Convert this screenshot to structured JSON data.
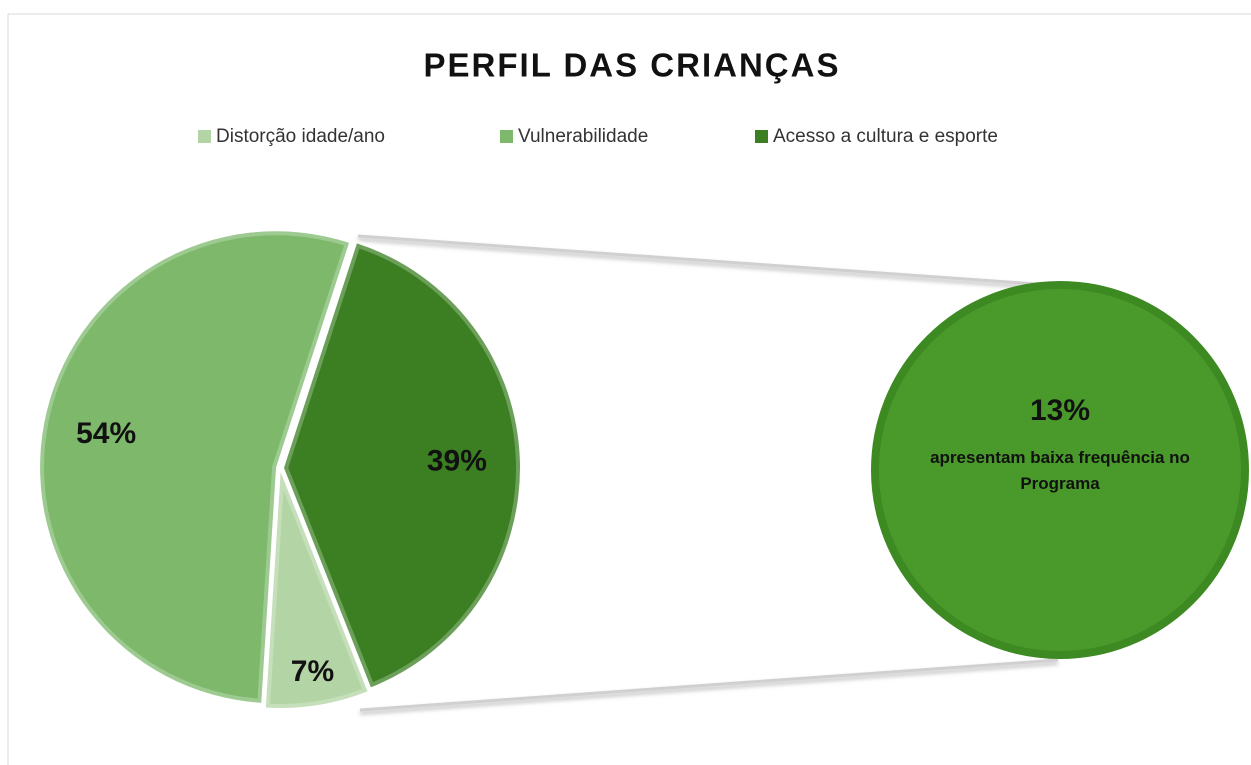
{
  "chart_data": {
    "type": "pie",
    "title": "PERFIL DAS CRIANÇAS",
    "categories": [
      "Distorção idade/ano",
      "Vulnerabilidade",
      "Acesso a cultura e esporte"
    ],
    "values": [
      7,
      54,
      39
    ],
    "value_labels": [
      "7%",
      "54%",
      "39%"
    ],
    "colors": [
      "#b3d5a5",
      "#7db86b",
      "#3b7f22"
    ],
    "legend": "top",
    "callout": {
      "value": 13,
      "label": "13%",
      "text": "apresentam baixa frequência no Programa",
      "color": "#4a9a2b"
    }
  }
}
